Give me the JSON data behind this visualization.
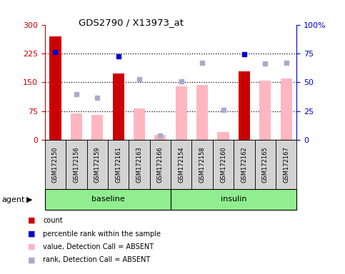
{
  "title": "GDS2790 / X13973_at",
  "samples": [
    "GSM172150",
    "GSM172156",
    "GSM172159",
    "GSM172161",
    "GSM172163",
    "GSM172166",
    "GSM172154",
    "GSM172158",
    "GSM172160",
    "GSM172162",
    "GSM172165",
    "GSM172167"
  ],
  "count_values": [
    270,
    null,
    null,
    172,
    null,
    null,
    null,
    null,
    null,
    178,
    null,
    null
  ],
  "percentile_values": [
    228,
    null,
    null,
    218,
    null,
    null,
    null,
    null,
    null,
    222,
    null,
    null
  ],
  "absent_value_bars": [
    null,
    68,
    65,
    null,
    82,
    12,
    140,
    143,
    20,
    null,
    155,
    160
  ],
  "absent_rank_dots": [
    null,
    118,
    110,
    null,
    158,
    10,
    152,
    200,
    78,
    null,
    198,
    200
  ],
  "left_ylim": [
    0,
    300
  ],
  "left_yticks": [
    0,
    75,
    150,
    225,
    300
  ],
  "right_ylim": [
    0,
    100
  ],
  "right_yticks": [
    0,
    25,
    50,
    75,
    100
  ],
  "right_yticklabels": [
    "0",
    "25",
    "50",
    "75",
    "100%"
  ],
  "dotted_lines": [
    75,
    150,
    225
  ],
  "bar_color_red": "#CC0000",
  "bar_color_pink": "#FFB6C1",
  "dot_color_blue": "#0000CC",
  "dot_color_lightblue": "#AAAACC",
  "group_color": "#90EE90",
  "label_bg_color": "#D3D3D3",
  "baseline_samples": 6,
  "groups": [
    {
      "label": "baseline",
      "start": 0,
      "end": 6
    },
    {
      "label": "insulin",
      "start": 6,
      "end": 12
    }
  ],
  "legend": [
    {
      "color": "#CC0000",
      "label": "count"
    },
    {
      "color": "#0000CC",
      "label": "percentile rank within the sample"
    },
    {
      "color": "#FFB6C1",
      "label": "value, Detection Call = ABSENT"
    },
    {
      "color": "#AAAACC",
      "label": "rank, Detection Call = ABSENT"
    }
  ]
}
